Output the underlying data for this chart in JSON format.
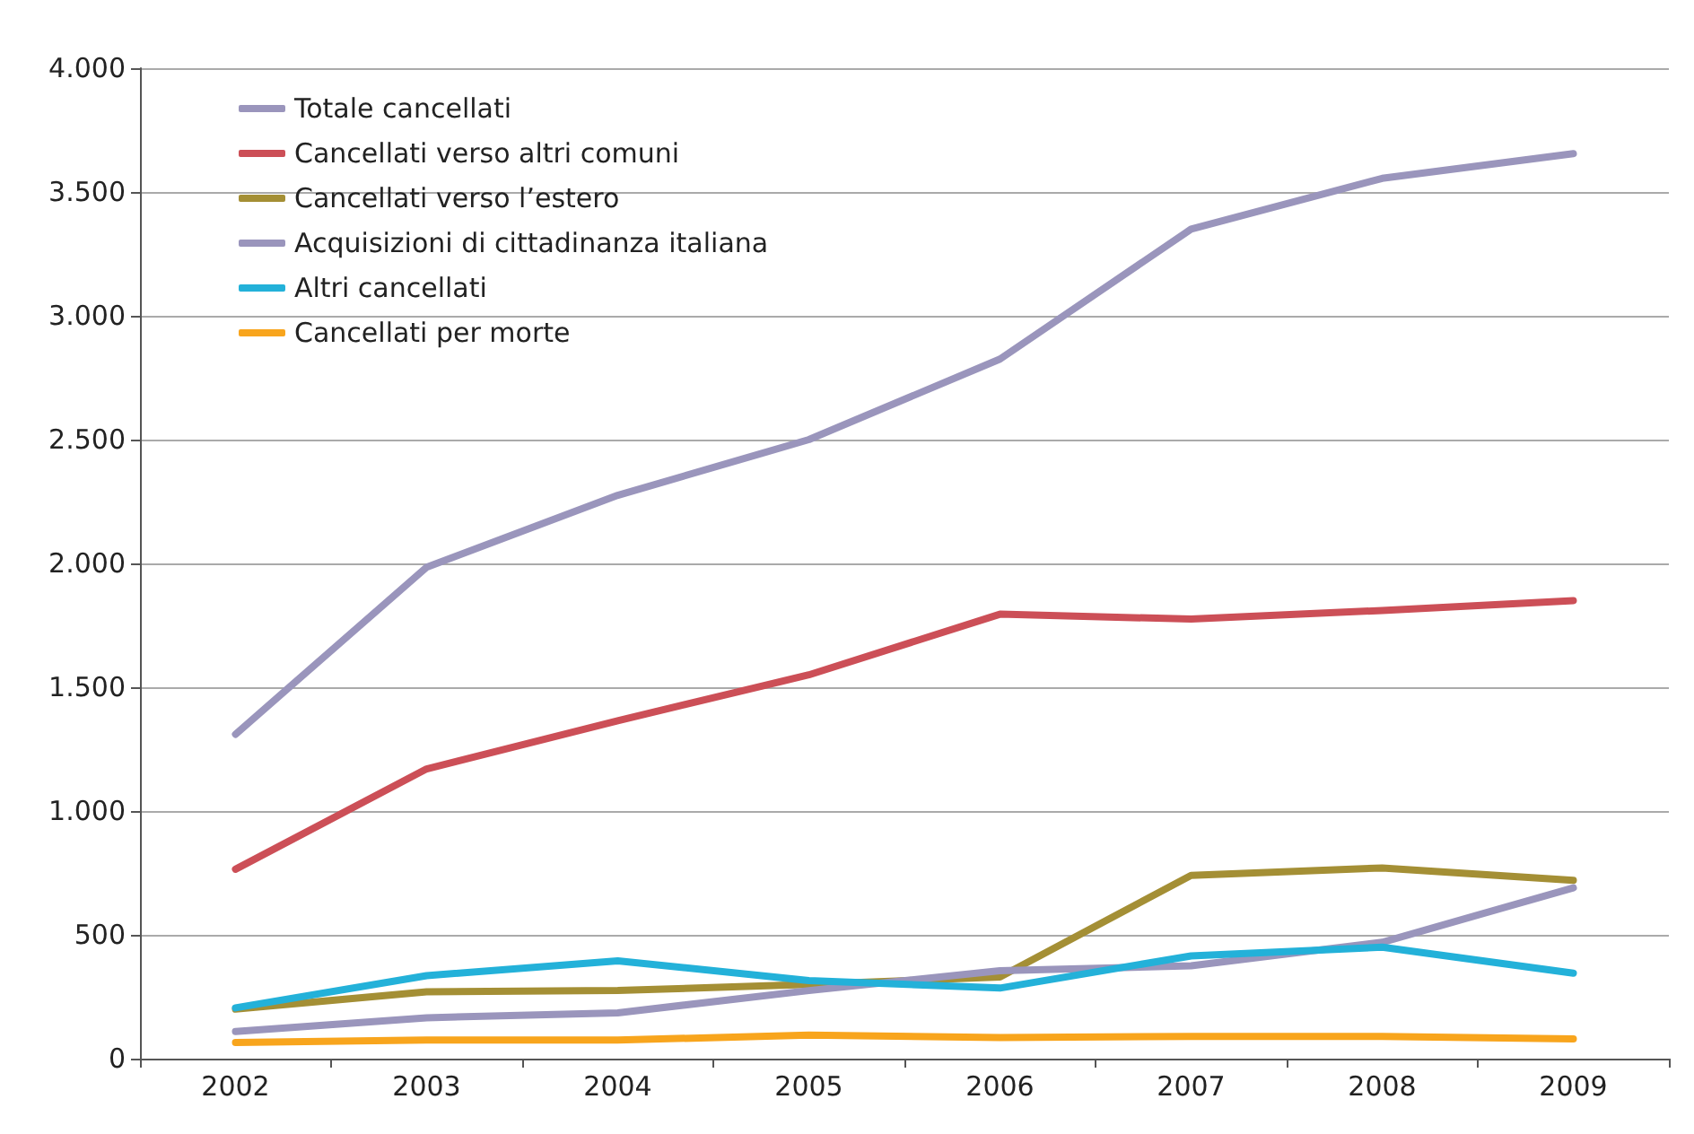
{
  "chart_data": {
    "type": "line",
    "categories": [
      "2002",
      "2003",
      "2004",
      "2005",
      "2006",
      "2007",
      "2008",
      "2009"
    ],
    "series": [
      {
        "name": "Totale cancellati",
        "color": "#9a95bc",
        "values": [
          1310,
          1985,
          2275,
          2500,
          2825,
          3350,
          3555,
          3655
        ]
      },
      {
        "name": "Cancellati verso altri comuni",
        "color": "#cc4f57",
        "values": [
          765,
          1170,
          1365,
          1550,
          1795,
          1775,
          1810,
          1850
        ]
      },
      {
        "name": "Cancellati verso l’estero",
        "color": "#a48f35",
        "values": [
          200,
          270,
          275,
          300,
          330,
          740,
          770,
          720
        ]
      },
      {
        "name": "Acquisizioni di cittadinanza italiana",
        "color": "#9a95bc",
        "values": [
          110,
          165,
          185,
          275,
          355,
          375,
          470,
          690
        ]
      },
      {
        "name": "Altri cancellati",
        "color": "#23b1d9",
        "values": [
          205,
          335,
          395,
          315,
          285,
          415,
          450,
          345
        ]
      },
      {
        "name": "Cancellati per morte",
        "color": "#f8a51d",
        "values": [
          65,
          75,
          75,
          95,
          85,
          90,
          90,
          80
        ]
      }
    ],
    "ylim": [
      0,
      4000
    ],
    "yticks": [
      0,
      {
        "value": 500,
        "label": "500"
      },
      {
        "value": 1000,
        "label": "1.000"
      },
      {
        "value": 1500,
        "label": "1.500"
      },
      {
        "value": 2000,
        "label": "2.000"
      },
      {
        "value": 2500,
        "label": "2.500"
      },
      {
        "value": 3000,
        "label": "3.000"
      },
      {
        "value": 3500,
        "label": "3.500"
      },
      {
        "value": 4000,
        "label": "4.000"
      }
    ],
    "grid": "y",
    "legend": "top left",
    "marker": "none",
    "line_style": "solid"
  }
}
